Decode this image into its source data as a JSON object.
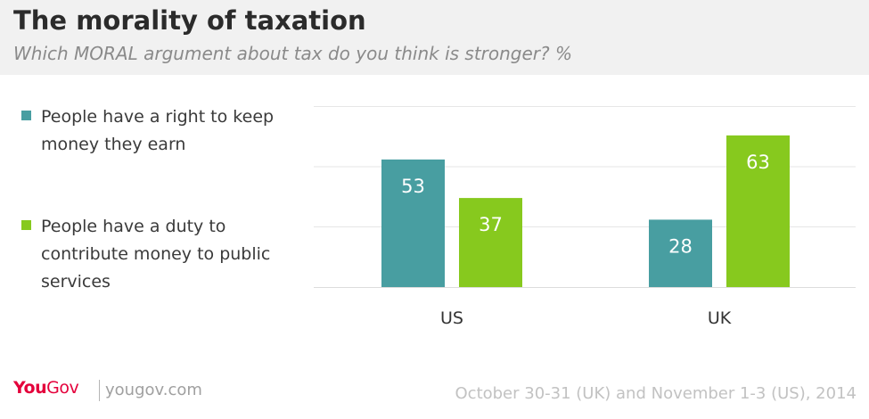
{
  "header": {
    "title": "The morality of taxation",
    "subtitle": "Which MORAL argument about tax do you think is stronger? %"
  },
  "legend": [
    {
      "label": "People have a right to keep money they earn",
      "color": "#489ea1"
    },
    {
      "label": "People have a duty to contribute money to public services",
      "color": "#87c91e"
    }
  ],
  "chart_data": {
    "type": "bar",
    "categories": [
      "US",
      "UK"
    ],
    "series": [
      {
        "name": "People have a right to keep money they earn",
        "values": [
          53,
          28
        ],
        "color": "#489ea1"
      },
      {
        "name": "People have a duty to contribute money to public services",
        "values": [
          37,
          63
        ],
        "color": "#87c91e"
      }
    ],
    "title": "The morality of taxation",
    "subtitle": "Which MORAL argument about tax do you think is stronger? %",
    "ylim": [
      0,
      75
    ],
    "grid": true,
    "legend_position": "left",
    "value_labels": "inside-top"
  },
  "footer": {
    "brand_you": "You",
    "brand_gov": "Gov",
    "site": "yougov.com",
    "date": "October 30-31 (UK) and November 1-3 (US), 2014"
  }
}
